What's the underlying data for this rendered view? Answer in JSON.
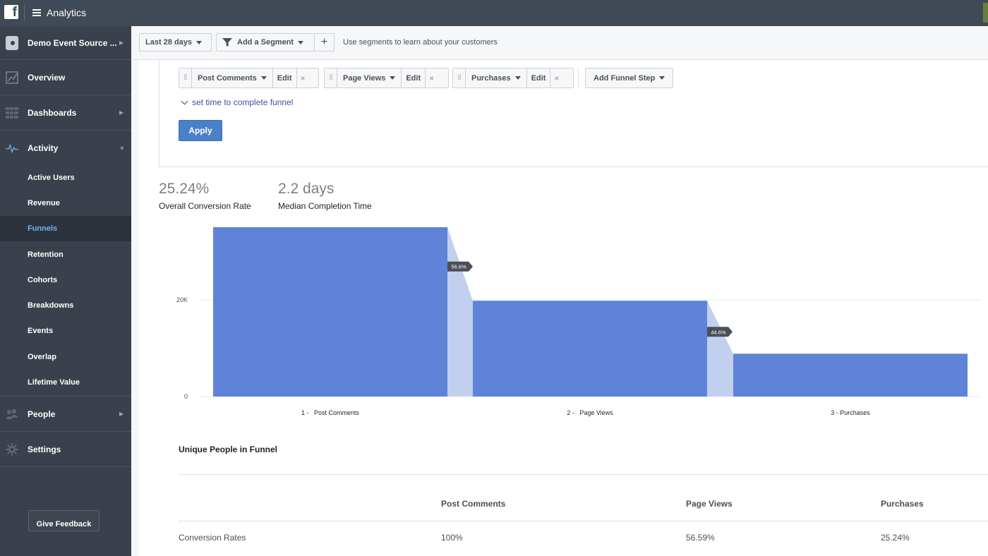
{
  "app": {
    "title": "Analytics"
  },
  "toolbar": {
    "date_range": "Last 28 days",
    "add_segment": "Add a Segment",
    "add_plus": "+",
    "hint": "Use segments to learn about your customers"
  },
  "sidebar": {
    "source": "Demo Event Source ...",
    "overview": "Overview",
    "dashboards": "Dashboards",
    "activity": "Activity",
    "activity_items": [
      "Active Users",
      "Revenue",
      "Funnels",
      "Retention",
      "Cohorts",
      "Breakdowns",
      "Events",
      "Overlap",
      "Lifetime Value"
    ],
    "people": "People",
    "settings": "Settings",
    "feedback": "Give Feedback"
  },
  "builder": {
    "steps": [
      {
        "name": "Post Comments",
        "edit": "Edit",
        "remove": "×"
      },
      {
        "name": "Page Views",
        "edit": "Edit",
        "remove": "×"
      },
      {
        "name": "Purchases",
        "edit": "Edit",
        "remove": "×"
      }
    ],
    "add_step": "Add Funnel Step",
    "time_link": "set time to complete funnel",
    "apply": "Apply"
  },
  "metrics": {
    "conversion_value": "25.24%",
    "conversion_label": "Overall Conversion Rate",
    "median_value": "2.2 days",
    "median_label": "Median Completion Time"
  },
  "chart_data": {
    "type": "bar",
    "categories": [
      "1 -   Post Comments",
      "2 -   Page Views",
      "3 - Purchases"
    ],
    "values": [
      35000,
      19800,
      8850
    ],
    "step_conversion_labels": [
      "56.6%",
      "44.6%"
    ],
    "ytick_values": [
      0,
      20000
    ],
    "ytick_labels": [
      "0",
      "20K"
    ],
    "ylim": [
      0,
      35000
    ],
    "colors": {
      "bar": "#5f83d7",
      "dropoff": "#c2d0ef",
      "label_bg": "#4b4f56"
    }
  },
  "table": {
    "title": "Unique People in Funnel",
    "headers": [
      "Post Comments",
      "Page Views",
      "Purchases"
    ],
    "rows": [
      {
        "label": "Conversion Rates",
        "values": [
          "100%",
          "56.59%",
          "25.24%"
        ]
      }
    ]
  }
}
